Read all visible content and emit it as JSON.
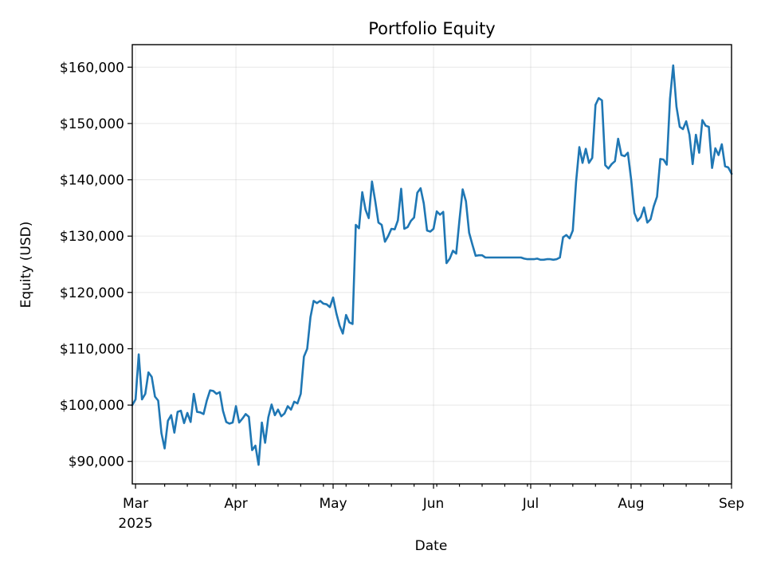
{
  "chart_data": {
    "type": "line",
    "title": "Portfolio Equity",
    "xlabel": "Date",
    "ylabel": "Equity (USD)",
    "xlim": [
      "2025-02-28",
      "2025-09-01"
    ],
    "ylim": [
      86000,
      164000
    ],
    "grid": true,
    "x_ticks": [
      {
        "date": "2025-03-01",
        "label": "Mar",
        "sublabel": "2025"
      },
      {
        "date": "2025-04-01",
        "label": "Apr",
        "sublabel": ""
      },
      {
        "date": "2025-05-01",
        "label": "May",
        "sublabel": ""
      },
      {
        "date": "2025-06-01",
        "label": "Jun",
        "sublabel": ""
      },
      {
        "date": "2025-07-01",
        "label": "Jul",
        "sublabel": ""
      },
      {
        "date": "2025-08-01",
        "label": "Aug",
        "sublabel": ""
      },
      {
        "date": "2025-09-01",
        "label": "Sep",
        "sublabel": ""
      }
    ],
    "x_minor_ticks": [
      "2025-03-10",
      "2025-03-17",
      "2025-03-24",
      "2025-03-31",
      "2025-04-07",
      "2025-04-14",
      "2025-04-21",
      "2025-04-28",
      "2025-05-05",
      "2025-05-12",
      "2025-05-19",
      "2025-05-26",
      "2025-06-02",
      "2025-06-09",
      "2025-06-16",
      "2025-06-23",
      "2025-06-30",
      "2025-07-07",
      "2025-07-14",
      "2025-07-21",
      "2025-07-28",
      "2025-08-04",
      "2025-08-11",
      "2025-08-18",
      "2025-08-25"
    ],
    "y_ticks": [
      {
        "value": 90000,
        "label": "$90,000"
      },
      {
        "value": 100000,
        "label": "$100,000"
      },
      {
        "value": 110000,
        "label": "$110,000"
      },
      {
        "value": 120000,
        "label": "$120,000"
      },
      {
        "value": 130000,
        "label": "$130,000"
      },
      {
        "value": 140000,
        "label": "$140,000"
      },
      {
        "value": 150000,
        "label": "$150,000"
      },
      {
        "value": 160000,
        "label": "$160,000"
      }
    ],
    "series": [
      {
        "color": "#1f77b4",
        "points": [
          [
            "2025-02-28",
            100000
          ],
          [
            "2025-03-01",
            101000
          ],
          [
            "2025-03-02",
            109000
          ],
          [
            "2025-03-03",
            101000
          ],
          [
            "2025-03-04",
            102000
          ],
          [
            "2025-03-05",
            105800
          ],
          [
            "2025-03-06",
            105000
          ],
          [
            "2025-03-07",
            101500
          ],
          [
            "2025-03-08",
            100800
          ],
          [
            "2025-03-09",
            95000
          ],
          [
            "2025-03-10",
            92300
          ],
          [
            "2025-03-11",
            97200
          ],
          [
            "2025-03-12",
            98200
          ],
          [
            "2025-03-13",
            95100
          ],
          [
            "2025-03-14",
            98800
          ],
          [
            "2025-03-15",
            99000
          ],
          [
            "2025-03-16",
            96800
          ],
          [
            "2025-03-17",
            98600
          ],
          [
            "2025-03-18",
            97000
          ],
          [
            "2025-03-19",
            102000
          ],
          [
            "2025-03-20",
            98800
          ],
          [
            "2025-03-21",
            98700
          ],
          [
            "2025-03-22",
            98400
          ],
          [
            "2025-03-23",
            100800
          ],
          [
            "2025-03-24",
            102600
          ],
          [
            "2025-03-25",
            102500
          ],
          [
            "2025-03-26",
            102000
          ],
          [
            "2025-03-27",
            102300
          ],
          [
            "2025-03-28",
            99000
          ],
          [
            "2025-03-29",
            97000
          ],
          [
            "2025-03-30",
            96700
          ],
          [
            "2025-03-31",
            96900
          ],
          [
            "2025-04-01",
            99800
          ],
          [
            "2025-04-02",
            96900
          ],
          [
            "2025-04-03",
            97600
          ],
          [
            "2025-04-04",
            98400
          ],
          [
            "2025-04-05",
            97900
          ],
          [
            "2025-04-06",
            92000
          ],
          [
            "2025-04-07",
            92800
          ],
          [
            "2025-04-08",
            89400
          ],
          [
            "2025-04-09",
            96900
          ],
          [
            "2025-04-10",
            93300
          ],
          [
            "2025-04-11",
            97800
          ],
          [
            "2025-04-12",
            100100
          ],
          [
            "2025-04-13",
            98200
          ],
          [
            "2025-04-14",
            99200
          ],
          [
            "2025-04-15",
            98000
          ],
          [
            "2025-04-16",
            98500
          ],
          [
            "2025-04-17",
            99800
          ],
          [
            "2025-04-18",
            99200
          ],
          [
            "2025-04-19",
            100600
          ],
          [
            "2025-04-20",
            100300
          ],
          [
            "2025-04-21",
            102000
          ],
          [
            "2025-04-22",
            108600
          ],
          [
            "2025-04-23",
            110000
          ],
          [
            "2025-04-24",
            115600
          ],
          [
            "2025-04-25",
            118500
          ],
          [
            "2025-04-26",
            118100
          ],
          [
            "2025-04-27",
            118500
          ],
          [
            "2025-04-28",
            118000
          ],
          [
            "2025-04-29",
            117900
          ],
          [
            "2025-04-30",
            117400
          ],
          [
            "2025-05-01",
            119100
          ],
          [
            "2025-05-02",
            116300
          ],
          [
            "2025-05-03",
            114100
          ],
          [
            "2025-05-04",
            112700
          ],
          [
            "2025-05-05",
            116000
          ],
          [
            "2025-05-06",
            114700
          ],
          [
            "2025-05-07",
            114400
          ],
          [
            "2025-05-08",
            132000
          ],
          [
            "2025-05-09",
            131400
          ],
          [
            "2025-05-10",
            137800
          ],
          [
            "2025-05-11",
            134700
          ],
          [
            "2025-05-12",
            133200
          ],
          [
            "2025-05-13",
            139700
          ],
          [
            "2025-05-14",
            136200
          ],
          [
            "2025-05-15",
            132400
          ],
          [
            "2025-05-16",
            132000
          ],
          [
            "2025-05-17",
            129000
          ],
          [
            "2025-05-18",
            130000
          ],
          [
            "2025-05-19",
            131300
          ],
          [
            "2025-05-20",
            131200
          ],
          [
            "2025-05-21",
            132800
          ],
          [
            "2025-05-22",
            138400
          ],
          [
            "2025-05-23",
            131300
          ],
          [
            "2025-05-24",
            131600
          ],
          [
            "2025-05-25",
            132700
          ],
          [
            "2025-05-26",
            133300
          ],
          [
            "2025-05-27",
            137700
          ],
          [
            "2025-05-28",
            138500
          ],
          [
            "2025-05-29",
            135800
          ],
          [
            "2025-05-30",
            131000
          ],
          [
            "2025-05-31",
            130800
          ],
          [
            "2025-06-01",
            131300
          ],
          [
            "2025-06-02",
            134400
          ],
          [
            "2025-06-03",
            133800
          ],
          [
            "2025-06-04",
            134300
          ],
          [
            "2025-06-05",
            125200
          ],
          [
            "2025-06-06",
            126000
          ],
          [
            "2025-06-07",
            127400
          ],
          [
            "2025-06-08",
            126900
          ],
          [
            "2025-06-09",
            132900
          ],
          [
            "2025-06-10",
            138300
          ],
          [
            "2025-06-11",
            136200
          ],
          [
            "2025-06-12",
            130600
          ],
          [
            "2025-06-13",
            128500
          ],
          [
            "2025-06-14",
            126500
          ],
          [
            "2025-06-15",
            126600
          ],
          [
            "2025-06-16",
            126600
          ],
          [
            "2025-06-17",
            126200
          ],
          [
            "2025-06-20",
            126200
          ],
          [
            "2025-06-25",
            126200
          ],
          [
            "2025-06-28",
            126200
          ],
          [
            "2025-06-29",
            126000
          ],
          [
            "2025-06-30",
            125900
          ],
          [
            "2025-07-01",
            125900
          ],
          [
            "2025-07-02",
            125900
          ],
          [
            "2025-07-03",
            126000
          ],
          [
            "2025-07-04",
            125800
          ],
          [
            "2025-07-05",
            125800
          ],
          [
            "2025-07-06",
            125900
          ],
          [
            "2025-07-07",
            125900
          ],
          [
            "2025-07-08",
            125800
          ],
          [
            "2025-07-09",
            125900
          ],
          [
            "2025-07-10",
            126200
          ],
          [
            "2025-07-11",
            129800
          ],
          [
            "2025-07-12",
            130200
          ],
          [
            "2025-07-13",
            129600
          ],
          [
            "2025-07-14",
            131000
          ],
          [
            "2025-07-15",
            139600
          ],
          [
            "2025-07-16",
            145800
          ],
          [
            "2025-07-17",
            143000
          ],
          [
            "2025-07-18",
            145500
          ],
          [
            "2025-07-19",
            143000
          ],
          [
            "2025-07-20",
            143900
          ],
          [
            "2025-07-21",
            153300
          ],
          [
            "2025-07-22",
            154500
          ],
          [
            "2025-07-23",
            154100
          ],
          [
            "2025-07-24",
            142600
          ],
          [
            "2025-07-25",
            142000
          ],
          [
            "2025-07-26",
            142800
          ],
          [
            "2025-07-27",
            143300
          ],
          [
            "2025-07-28",
            147300
          ],
          [
            "2025-07-29",
            144400
          ],
          [
            "2025-07-30",
            144200
          ],
          [
            "2025-07-31",
            144800
          ],
          [
            "2025-08-01",
            140100
          ],
          [
            "2025-08-02",
            134100
          ],
          [
            "2025-08-03",
            132700
          ],
          [
            "2025-08-04",
            133400
          ],
          [
            "2025-08-05",
            135100
          ],
          [
            "2025-08-06",
            132400
          ],
          [
            "2025-08-07",
            133000
          ],
          [
            "2025-08-08",
            135300
          ],
          [
            "2025-08-09",
            137000
          ],
          [
            "2025-08-10",
            143700
          ],
          [
            "2025-08-11",
            143600
          ],
          [
            "2025-08-12",
            142700
          ],
          [
            "2025-08-13",
            154400
          ],
          [
            "2025-08-14",
            160300
          ],
          [
            "2025-08-15",
            153000
          ],
          [
            "2025-08-16",
            149400
          ],
          [
            "2025-08-17",
            149000
          ],
          [
            "2025-08-18",
            150400
          ],
          [
            "2025-08-19",
            148000
          ],
          [
            "2025-08-20",
            142800
          ],
          [
            "2025-08-21",
            148000
          ],
          [
            "2025-08-22",
            144800
          ],
          [
            "2025-08-23",
            150600
          ],
          [
            "2025-08-24",
            149600
          ],
          [
            "2025-08-25",
            149400
          ],
          [
            "2025-08-26",
            142100
          ],
          [
            "2025-08-27",
            145600
          ],
          [
            "2025-08-28",
            144400
          ],
          [
            "2025-08-29",
            146300
          ],
          [
            "2025-08-30",
            142400
          ],
          [
            "2025-08-31",
            142200
          ],
          [
            "2025-09-01",
            141100
          ]
        ]
      }
    ]
  }
}
